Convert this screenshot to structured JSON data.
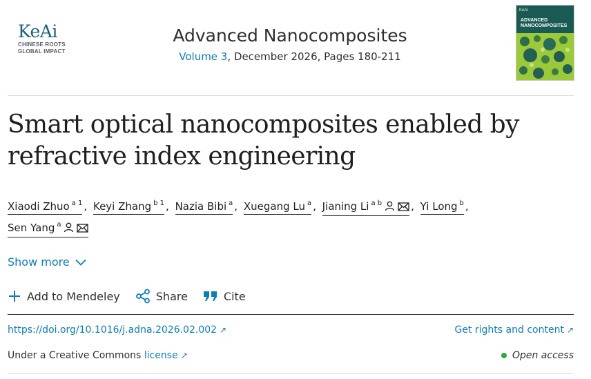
{
  "publisher": {
    "logo_word": "KeAi",
    "tagline_1": "CHINESE ROOTS",
    "tagline_2": "GLOBAL IMPACT"
  },
  "journal": {
    "title": "Advanced Nanocomposites",
    "volume_link": "Volume 3",
    "issue_info": ", December 2026, Pages 180-211",
    "cover_brand": "KeAi",
    "cover_title_1": "ADVANCED",
    "cover_title_2": "NANOCOMPOSITES"
  },
  "article": {
    "title": "Smart optical nanocomposites enabled by refractive index engineering"
  },
  "authors": [
    {
      "name": "Xiaodi Zhuo",
      "sup": "a 1"
    },
    {
      "name": "Keyi Zhang",
      "sup": "b 1"
    },
    {
      "name": "Nazia Bibi",
      "sup": "a"
    },
    {
      "name": "Xuegang Lu",
      "sup": "a"
    },
    {
      "name": "Jianing Li",
      "sup": "a b"
    },
    {
      "name": "Yi Long",
      "sup": "b"
    },
    {
      "name": "Sen Yang",
      "sup": "a"
    }
  ],
  "show_more": "Show more",
  "actions": {
    "mendeley": "Add to Mendeley",
    "share": "Share",
    "cite": "Cite"
  },
  "links": {
    "doi": "https://doi.org/10.1016/j.adna.2026.02.002",
    "rights": "Get rights and content",
    "license_prefix": "Under a Creative Commons ",
    "license_link": "license",
    "open_access": "Open access"
  },
  "colors": {
    "link": "#0c7dbb",
    "text": "#1f1f1f",
    "open_access_dot": "#2fa846",
    "logo": "#1c5f7a"
  }
}
